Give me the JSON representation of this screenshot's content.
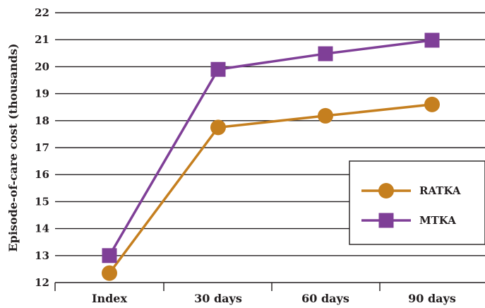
{
  "chart_data": {
    "type": "line",
    "title": "",
    "xlabel": "",
    "ylabel": "Episode-of-care cost (thousands)",
    "categories": [
      "Index",
      "30 days",
      "60 days",
      "90 days"
    ],
    "ylim": [
      12,
      22
    ],
    "yticks": [
      12,
      13,
      14,
      15,
      16,
      17,
      18,
      19,
      20,
      21,
      22
    ],
    "grid": "horizontal",
    "legend_position": "right",
    "series": [
      {
        "name": "RATKA",
        "marker": "circle",
        "color": "#c57f1f",
        "values": [
          12.35,
          17.75,
          18.18,
          18.6
        ]
      },
      {
        "name": "MTKA",
        "marker": "square",
        "color": "#7f3f97",
        "values": [
          13.0,
          19.9,
          20.48,
          20.98
        ]
      }
    ]
  }
}
